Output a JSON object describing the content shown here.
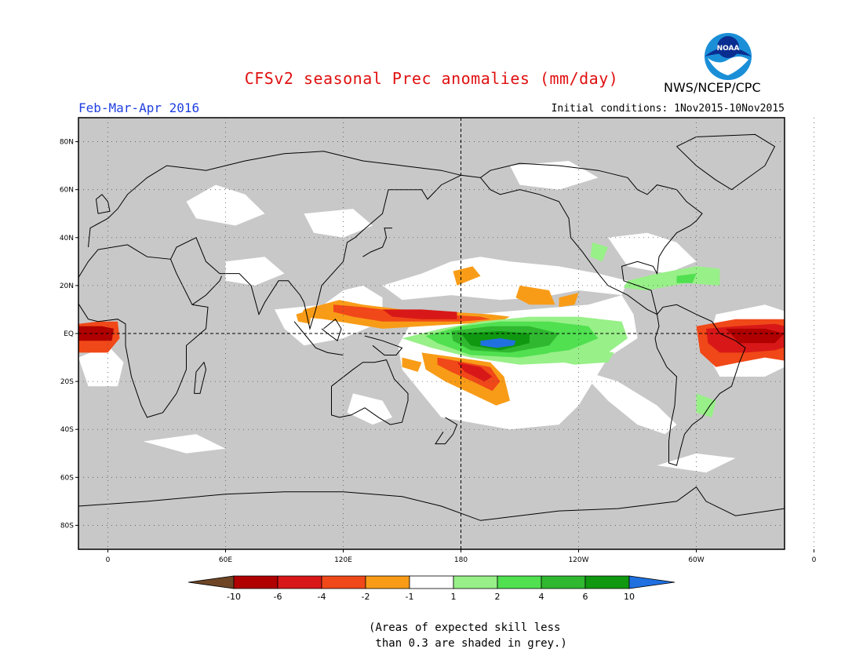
{
  "title": "CFSv2 seasonal Prec anomalies (mm/day)",
  "org": "NWS/NCEP/CPC",
  "logo_text": "NOAA",
  "season": "Feb-Mar-Apr 2016",
  "initial_conditions": "Initial conditions: 1Nov2015-10Nov2015",
  "footnote": {
    "line1": "(Areas of expected skill less",
    "line2": " than 0.3 are shaded in grey.)"
  },
  "colors": {
    "grey": "#c8c8c8",
    "dark_brown": "#6e4626",
    "dark_red": "#b00000",
    "red": "#d81818",
    "orange_red": "#f04818",
    "orange": "#f89c18",
    "white": "#ffffff",
    "light_green": "#98f088",
    "green": "#50e050",
    "mid_green": "#30b830",
    "dark_green": "#109810",
    "blue": "#2070e0"
  },
  "chart_data": {
    "type": "heatmap",
    "projection": "equirectangular",
    "lon_range": [
      -15,
      345
    ],
    "lat_range": [
      -90,
      90
    ],
    "x_ticks": [
      {
        "lon": 0,
        "label": "0"
      },
      {
        "lon": 60,
        "label": "60E"
      },
      {
        "lon": 120,
        "label": "120E"
      },
      {
        "lon": 180,
        "label": "180"
      },
      {
        "lon": 240,
        "label": "120W"
      },
      {
        "lon": 300,
        "label": "60W"
      },
      {
        "lon": 360,
        "label": "0"
      }
    ],
    "y_ticks": [
      {
        "lat": 80,
        "label": "80N"
      },
      {
        "lat": 60,
        "label": "60N"
      },
      {
        "lat": 40,
        "label": "40N"
      },
      {
        "lat": 20,
        "label": "20N"
      },
      {
        "lat": 0,
        "label": "EQ"
      },
      {
        "lat": -20,
        "label": "20S"
      },
      {
        "lat": -40,
        "label": "40S"
      },
      {
        "lat": -60,
        "label": "60S"
      },
      {
        "lat": -80,
        "label": "80S"
      }
    ],
    "grid": "dotted",
    "colorbar": {
      "labels": [
        "-10",
        "-6",
        "-4",
        "-2",
        "-1",
        "1",
        "2",
        "4",
        "6",
        "10"
      ],
      "colors": [
        "#6e4626",
        "#b00000",
        "#d81818",
        "#f04818",
        "#f89c18",
        "#ffffff",
        "#98f088",
        "#50e050",
        "#30b830",
        "#109810",
        "#2070e0"
      ]
    },
    "anomaly_regions": [
      {
        "name": "equatorial-central-pacific-wet",
        "class": "2",
        "lon": [
          155,
          270
        ],
        "lat": [
          -12,
          8
        ]
      },
      {
        "name": "equatorial-central-pacific-wet-core",
        "class": "4",
        "lon": [
          175,
          230
        ],
        "lat": [
          -9,
          5
        ]
      },
      {
        "name": "equatorial-central-pacific-wet-max",
        "class": "6",
        "lon": [
          182,
          215
        ],
        "lat": [
          -7,
          2
        ]
      },
      {
        "name": "equatorial-pacific-extreme-wet",
        "class": "10",
        "lon": [
          188,
          208
        ],
        "lat": [
          -5,
          -1
        ]
      },
      {
        "name": "western-pacific-dry",
        "class": "-4",
        "lon": [
          100,
          190
        ],
        "lat": [
          3,
          12
        ]
      },
      {
        "name": "south-pacific-dry",
        "class": "-4",
        "lon": [
          160,
          200
        ],
        "lat": [
          -25,
          -10
        ]
      },
      {
        "name": "northeast-brazil-dry",
        "class": "-6",
        "lon": [
          310,
          345
        ],
        "lat": [
          -10,
          2
        ]
      },
      {
        "name": "gulf-of-guinea-dry",
        "class": "-6",
        "lon": [
          -15,
          5
        ],
        "lat": [
          -5,
          3
        ]
      },
      {
        "name": "north-atlantic-subtropical-wet",
        "class": "1",
        "lon": [
          265,
          310
        ],
        "lat": [
          20,
          30
        ]
      }
    ]
  }
}
